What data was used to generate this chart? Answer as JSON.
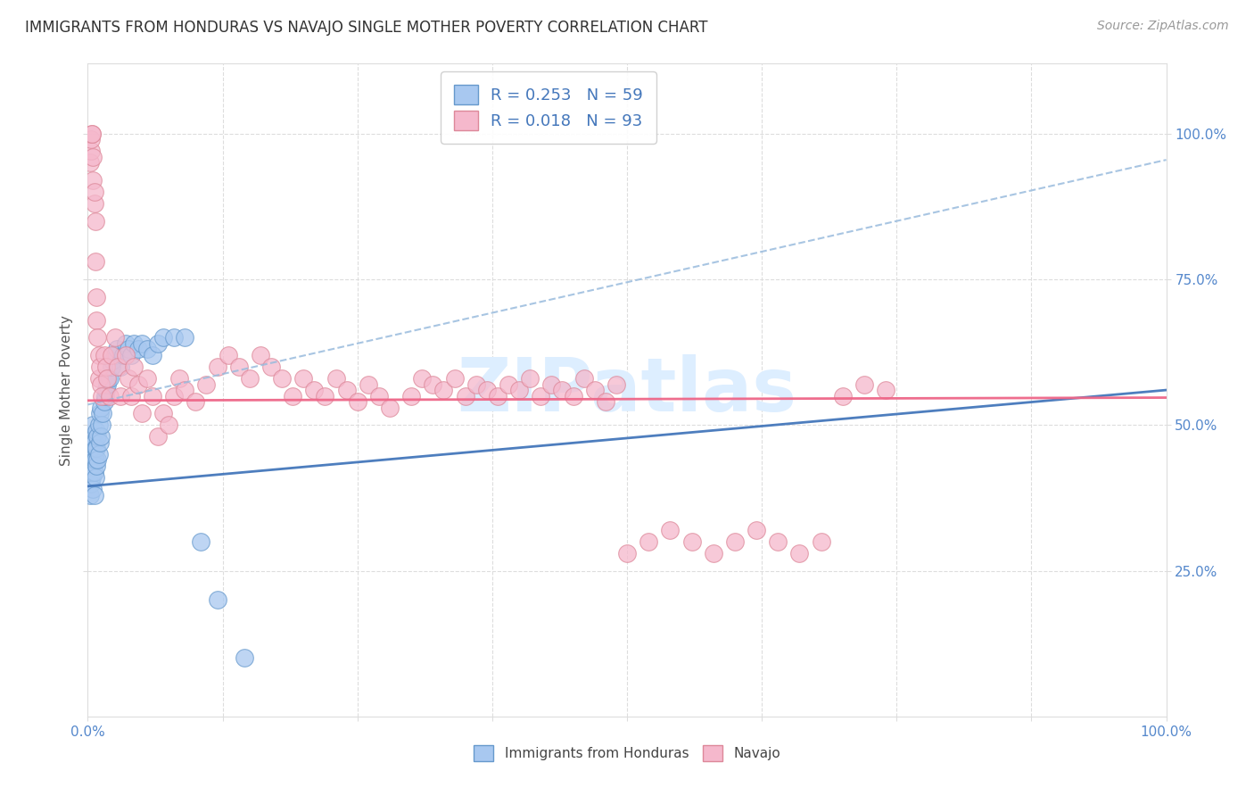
{
  "title": "IMMIGRANTS FROM HONDURAS VS NAVAJO SINGLE MOTHER POVERTY CORRELATION CHART",
  "source": "Source: ZipAtlas.com",
  "ylabel": "Single Mother Poverty",
  "r_blue": 0.253,
  "n_blue": 59,
  "r_pink": 0.018,
  "n_pink": 93,
  "blue_color": "#A8C8F0",
  "blue_edge_color": "#6699CC",
  "pink_color": "#F5B8CC",
  "pink_edge_color": "#DD8899",
  "trend_blue_solid_color": "#4477BB",
  "trend_blue_dashed_color": "#99BBDD",
  "trend_pink_color": "#EE6688",
  "grid_color": "#DDDDDD",
  "title_color": "#333333",
  "tick_label_color": "#5588CC",
  "ylabel_color": "#555555",
  "watermark_color": "#DDEEFF",
  "watermark_text": "ZIPatlas",
  "legend_label_color": "#4477BB",
  "blue_points_x": [
    0.002,
    0.003,
    0.003,
    0.004,
    0.004,
    0.004,
    0.004,
    0.005,
    0.005,
    0.005,
    0.005,
    0.005,
    0.006,
    0.006,
    0.006,
    0.006,
    0.007,
    0.007,
    0.007,
    0.008,
    0.008,
    0.008,
    0.009,
    0.009,
    0.01,
    0.01,
    0.011,
    0.011,
    0.012,
    0.012,
    0.013,
    0.014,
    0.015,
    0.016,
    0.017,
    0.018,
    0.019,
    0.02,
    0.022,
    0.023,
    0.025,
    0.027,
    0.03,
    0.033,
    0.035,
    0.038,
    0.04,
    0.043,
    0.047,
    0.05,
    0.055,
    0.06,
    0.065,
    0.07,
    0.08,
    0.09,
    0.105,
    0.12,
    0.145
  ],
  "blue_points_y": [
    0.38,
    0.4,
    0.43,
    0.41,
    0.44,
    0.46,
    0.48,
    0.39,
    0.42,
    0.45,
    0.47,
    0.5,
    0.38,
    0.42,
    0.44,
    0.47,
    0.41,
    0.44,
    0.46,
    0.43,
    0.46,
    0.49,
    0.44,
    0.48,
    0.45,
    0.5,
    0.47,
    0.52,
    0.48,
    0.53,
    0.5,
    0.52,
    0.54,
    0.55,
    0.56,
    0.57,
    0.58,
    0.58,
    0.6,
    0.61,
    0.62,
    0.63,
    0.6,
    0.62,
    0.64,
    0.63,
    0.62,
    0.64,
    0.63,
    0.64,
    0.63,
    0.62,
    0.64,
    0.65,
    0.65,
    0.65,
    0.3,
    0.2,
    0.1
  ],
  "pink_points_x": [
    0.002,
    0.003,
    0.003,
    0.004,
    0.004,
    0.005,
    0.005,
    0.006,
    0.006,
    0.007,
    0.007,
    0.008,
    0.008,
    0.009,
    0.01,
    0.01,
    0.011,
    0.012,
    0.013,
    0.015,
    0.017,
    0.018,
    0.02,
    0.022,
    0.025,
    0.028,
    0.03,
    0.035,
    0.038,
    0.04,
    0.043,
    0.047,
    0.05,
    0.055,
    0.06,
    0.065,
    0.07,
    0.075,
    0.08,
    0.085,
    0.09,
    0.1,
    0.11,
    0.12,
    0.13,
    0.14,
    0.15,
    0.16,
    0.17,
    0.18,
    0.19,
    0.2,
    0.21,
    0.22,
    0.23,
    0.24,
    0.25,
    0.26,
    0.27,
    0.28,
    0.3,
    0.31,
    0.32,
    0.33,
    0.34,
    0.35,
    0.36,
    0.37,
    0.38,
    0.39,
    0.4,
    0.41,
    0.42,
    0.43,
    0.44,
    0.45,
    0.46,
    0.47,
    0.48,
    0.49,
    0.5,
    0.52,
    0.54,
    0.56,
    0.58,
    0.6,
    0.62,
    0.64,
    0.66,
    0.68,
    0.7,
    0.72,
    0.74
  ],
  "pink_points_y": [
    0.95,
    0.97,
    0.99,
    1.0,
    1.0,
    0.92,
    0.96,
    0.88,
    0.9,
    0.85,
    0.78,
    0.72,
    0.68,
    0.65,
    0.62,
    0.58,
    0.6,
    0.57,
    0.55,
    0.62,
    0.6,
    0.58,
    0.55,
    0.62,
    0.65,
    0.6,
    0.55,
    0.62,
    0.58,
    0.55,
    0.6,
    0.57,
    0.52,
    0.58,
    0.55,
    0.48,
    0.52,
    0.5,
    0.55,
    0.58,
    0.56,
    0.54,
    0.57,
    0.6,
    0.62,
    0.6,
    0.58,
    0.62,
    0.6,
    0.58,
    0.55,
    0.58,
    0.56,
    0.55,
    0.58,
    0.56,
    0.54,
    0.57,
    0.55,
    0.53,
    0.55,
    0.58,
    0.57,
    0.56,
    0.58,
    0.55,
    0.57,
    0.56,
    0.55,
    0.57,
    0.56,
    0.58,
    0.55,
    0.57,
    0.56,
    0.55,
    0.58,
    0.56,
    0.54,
    0.57,
    0.28,
    0.3,
    0.32,
    0.3,
    0.28,
    0.3,
    0.32,
    0.3,
    0.28,
    0.3,
    0.55,
    0.57,
    0.56
  ]
}
